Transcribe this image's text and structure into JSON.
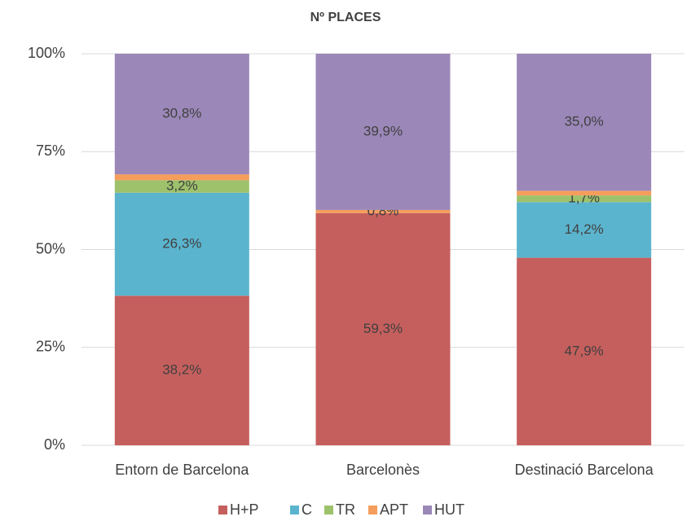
{
  "chart_data": {
    "type": "stacked_bar_100",
    "title": "Nº PLACES",
    "categories": [
      "Entorn de Barcelona",
      "Barcelonès",
      "Destinació Barcelona"
    ],
    "series": [
      {
        "name": "H+P",
        "color": "#c55f5d",
        "values": [
          38.2,
          59.3,
          47.9
        ],
        "value_labels": [
          "38,2%",
          "59,3%",
          "47,9%"
        ]
      },
      {
        "name": "C",
        "color": "#5bb4ce",
        "values": [
          26.3,
          0,
          14.2
        ],
        "value_labels": [
          "26,3%",
          null,
          "14,2%"
        ]
      },
      {
        "name": "TR",
        "color": "#9dc26b",
        "values": [
          3.2,
          0,
          1.7
        ],
        "value_labels": [
          "3,2%",
          null,
          "1,7%"
        ]
      },
      {
        "name": "APT",
        "color": "#f59d5c",
        "values": [
          1.5,
          0.8,
          1.2
        ],
        "value_labels": [
          null,
          "0,8%",
          null
        ]
      },
      {
        "name": "HUT",
        "color": "#9b87b8",
        "values": [
          30.8,
          39.9,
          35.0
        ],
        "value_labels": [
          "30,8%",
          "39,9%",
          "35,0%"
        ]
      }
    ],
    "ylim": [
      0,
      100
    ],
    "yticks": [
      {
        "value": 0,
        "label": "0%"
      },
      {
        "value": 25,
        "label": "25%"
      },
      {
        "value": 50,
        "label": "50%"
      },
      {
        "value": 75,
        "label": "75%"
      },
      {
        "value": 100,
        "label": "100%"
      }
    ],
    "grid": true,
    "legend": "bottom"
  }
}
